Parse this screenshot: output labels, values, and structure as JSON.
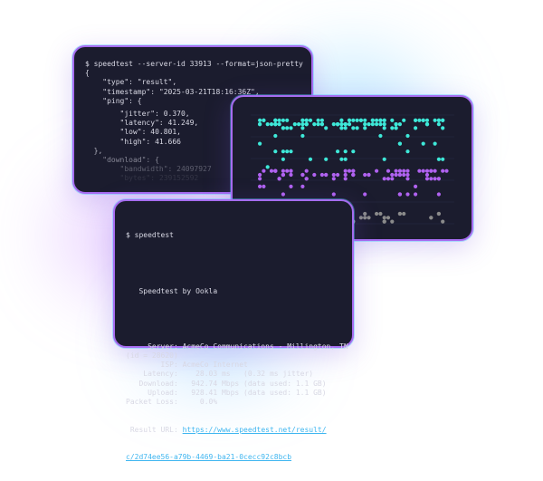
{
  "json_terminal": {
    "lines": [
      "$ speedtest --server-id 33913 --format=json-pretty",
      "{",
      "    \"type\": \"result\",",
      "    \"timestamp\": \"2025-03-21T18:16:36Z\",",
      "    \"ping\": {",
      "        \"jitter\": 0.370,",
      "        \"latency\": 41.249,",
      "        \"low\": 40.801,",
      "        \"high\": 41.666",
      "  },",
      "    \"download\": {",
      "        \"bandwidth\": 24097927",
      "        \"bytes\": 239152592"
    ]
  },
  "dot_chart": {
    "colors": {
      "ping": "#3ee8d8",
      "download": "#b062f0",
      "upload": "#8a8a8a",
      "grid": "#2a2d48"
    }
  },
  "cli_terminal": {
    "prompt": "$ speedtest",
    "brand": "   Speedtest by Ookla",
    "lines": [
      "     Server: AcmeCo Communications - Millington, TN",
      "(id = 28620)",
      "        ISP: AcmeCo Internet",
      "    Latency:    28.03 ms   (0.32 ms jitter)",
      "   Download:   942.74 Mbps (data used: 1.1 GB)",
      "     Upload:   928.41 Mbps (data used: 1.1 GB)",
      "Packet Loss:     0.0%"
    ],
    "result_label": " Result URL: ",
    "result_url_1": "https://www.speedtest.net/result/",
    "result_url_2": "c/2d74ee56-a79b-4469-ba21-0cecc92c8bcb"
  }
}
